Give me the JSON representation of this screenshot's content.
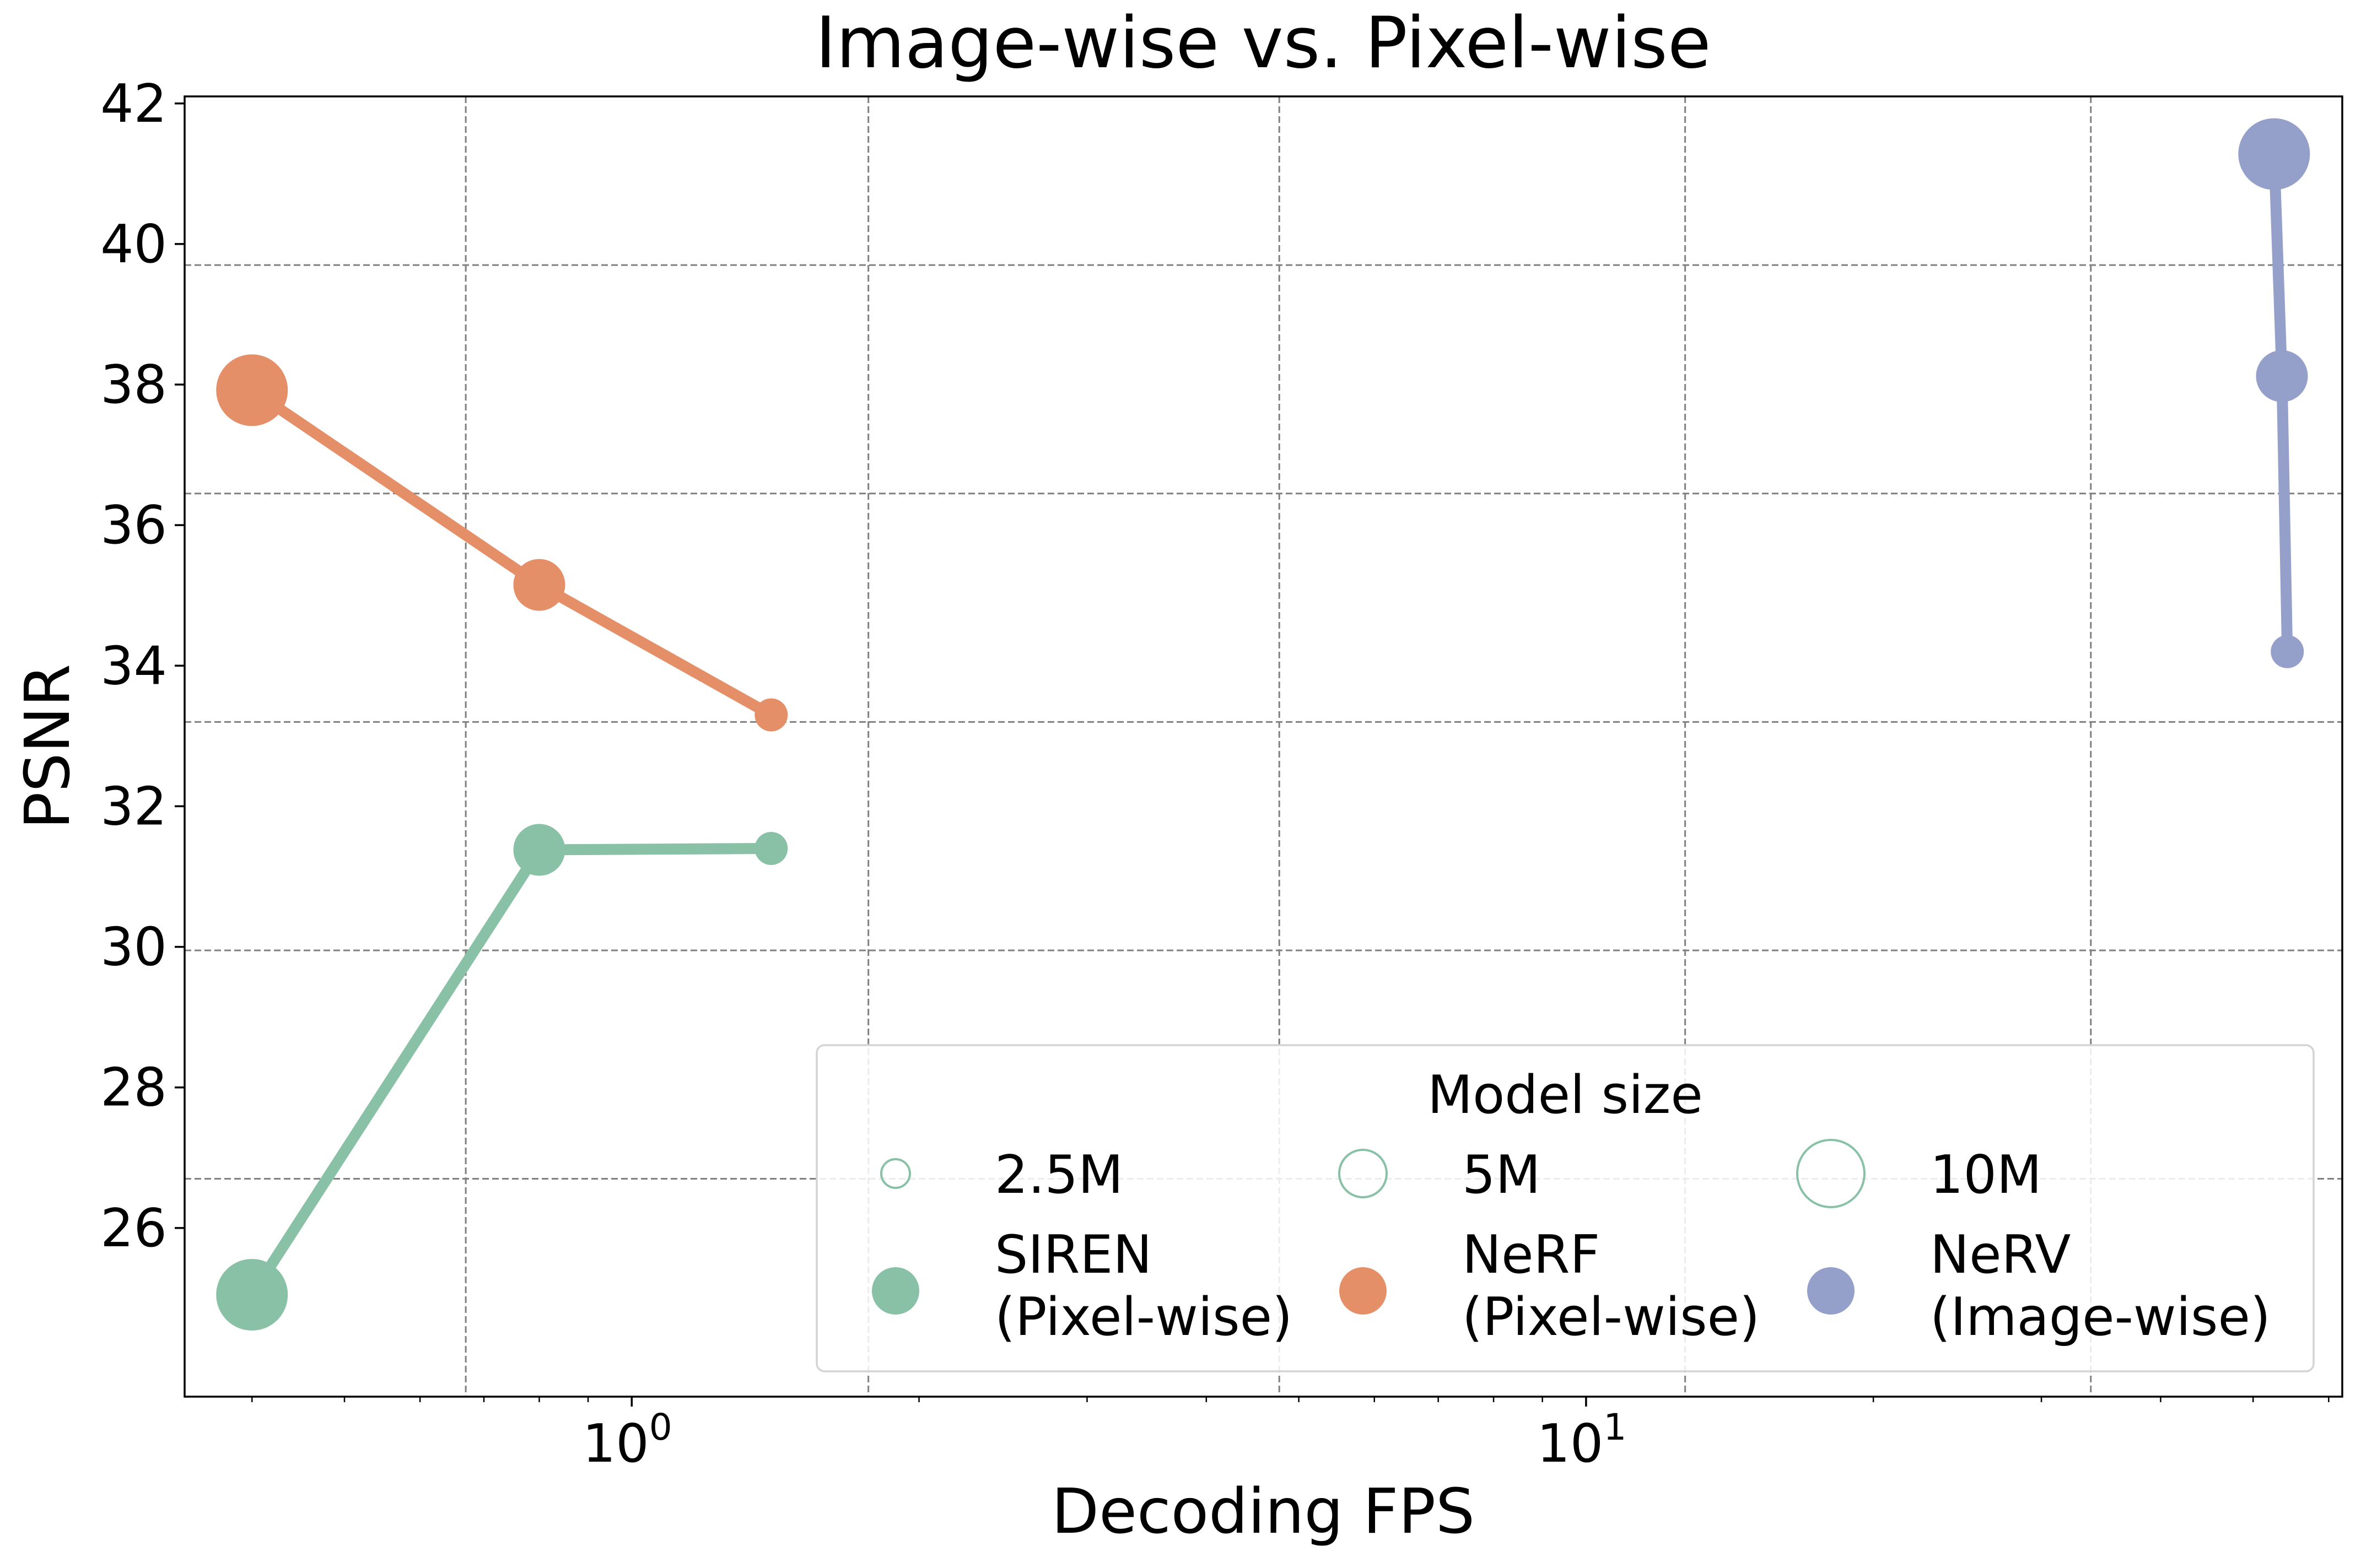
{
  "chart_data": {
    "type": "line",
    "title": "Image-wise vs. Pixel-wise",
    "xlabel": "Decoding FPS",
    "ylabel": "PSNR",
    "xscale": "log",
    "xlim": [
      0.34,
      62
    ],
    "ylim": [
      23.6,
      42.1
    ],
    "yticks": [
      26,
      28,
      30,
      32,
      34,
      36,
      38,
      40,
      42
    ],
    "ytick_labels": [
      "26",
      "28",
      "30",
      "32",
      "34",
      "36",
      "38",
      "40",
      "42"
    ],
    "xticks": [
      {
        "value": 1,
        "base": "10",
        "exp": "0"
      },
      {
        "value": 10,
        "base": "10",
        "exp": "1"
      }
    ],
    "grid": true,
    "grid_x": [
      0.67,
      1.77,
      4.77,
      12.7,
      33.8
    ],
    "grid_y": [
      26.7,
      29.95,
      33.2,
      36.45,
      39.7
    ],
    "legend": {
      "title": "Model size",
      "position": "lower-right",
      "sizes": [
        {
          "label": "2.5M",
          "size": 2.5
        },
        {
          "label": "5M",
          "size": 5
        },
        {
          "label": "10M",
          "size": 10
        }
      ],
      "entries": [
        {
          "line1": "SIREN",
          "line2": "(Pixel-wise)",
          "series": 0
        },
        {
          "line1": "NeRF",
          "line2": "(Pixel-wise)",
          "series": 1
        },
        {
          "line1": "NeRV",
          "line2": "(Image-wise)",
          "series": 2
        }
      ]
    },
    "series": [
      {
        "name": "SIREN (Pixel-wise)",
        "color": "#88c1a6",
        "points": [
          {
            "x": 0.4,
            "y": 25.05,
            "size": 10
          },
          {
            "x": 0.8,
            "y": 31.38,
            "size": 5
          },
          {
            "x": 1.4,
            "y": 31.4,
            "size": 2.5
          }
        ]
      },
      {
        "name": "NeRF (Pixel-wise)",
        "color": "#e58f68",
        "points": [
          {
            "x": 0.4,
            "y": 37.92,
            "size": 10
          },
          {
            "x": 0.8,
            "y": 35.15,
            "size": 5
          },
          {
            "x": 1.4,
            "y": 33.3,
            "size": 2.5
          }
        ]
      },
      {
        "name": "NeRV (Image-wise)",
        "color": "#949fca",
        "points": [
          {
            "x": 52.6,
            "y": 41.28,
            "size": 10
          },
          {
            "x": 53.6,
            "y": 38.12,
            "size": 5
          },
          {
            "x": 54.3,
            "y": 34.2,
            "size": 2.5
          }
        ]
      }
    ]
  }
}
